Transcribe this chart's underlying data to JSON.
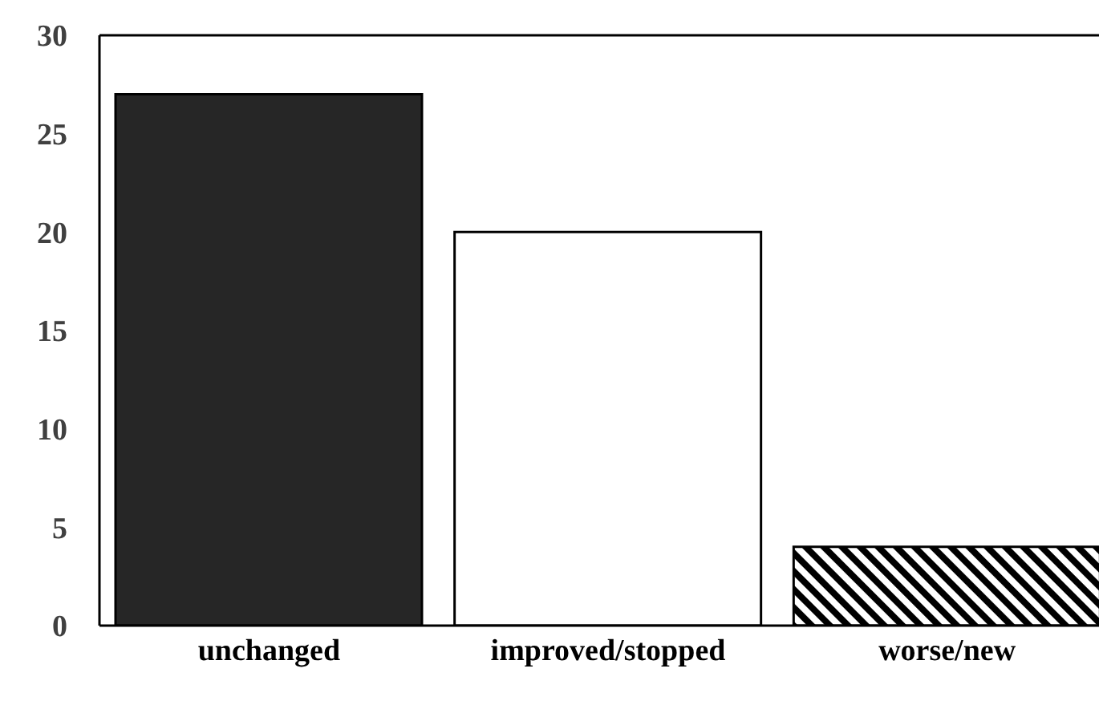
{
  "chart_data": {
    "type": "bar",
    "categories": [
      "unchanged",
      "improved/stopped",
      "worse/new"
    ],
    "values": [
      27,
      20,
      4
    ],
    "colors": [
      "#262626",
      "#ffffff",
      "#000000"
    ],
    "ylim": [
      0,
      30
    ],
    "yticks": [
      0,
      5,
      10,
      15,
      20,
      25,
      30
    ]
  }
}
